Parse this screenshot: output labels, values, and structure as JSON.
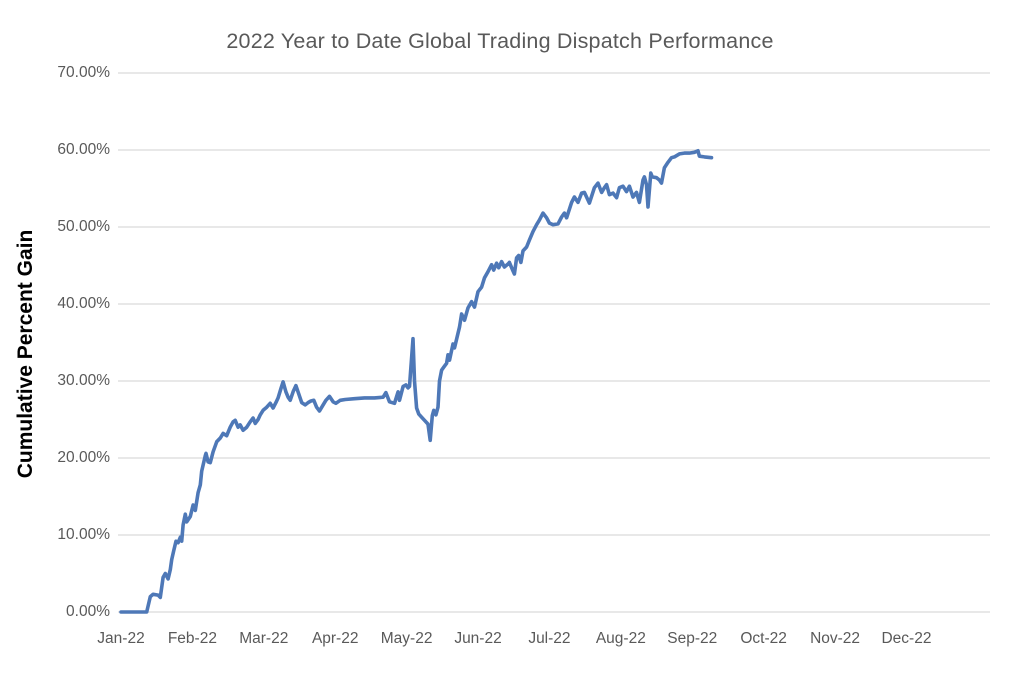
{
  "chart_data": {
    "type": "line",
    "title": "2022 Year to Date Global Trading Dispatch Performance",
    "xlabel": "",
    "ylabel": "Cumulative Percent Gain",
    "legend": "none",
    "grid": "horizontal",
    "ylim": [
      0,
      70
    ],
    "y_tick_step": 10,
    "y_tick_labels": [
      "0.00%",
      "10.00%",
      "20.00%",
      "30.00%",
      "40.00%",
      "50.00%",
      "60.00%",
      "70.00%"
    ],
    "x_tick_labels": [
      "Jan-22",
      "Feb-22",
      "Mar-22",
      "Apr-22",
      "May-22",
      "Jun-22",
      "Jul-22",
      "Aug-22",
      "Sep-22",
      "Oct-22",
      "Nov-22",
      "Dec-22"
    ],
    "x_axis_range_months": [
      0,
      12.17
    ],
    "series": [
      {
        "name": "Cumulative Percent Gain",
        "color": "#4E78B7",
        "points_month_pct": [
          [
            0.0,
            0
          ],
          [
            0.36,
            0
          ],
          [
            0.41,
            2.0
          ],
          [
            0.45,
            2.3
          ],
          [
            0.52,
            2.2
          ],
          [
            0.55,
            1.9
          ],
          [
            0.59,
            4.5
          ],
          [
            0.62,
            5.0
          ],
          [
            0.66,
            4.3
          ],
          [
            0.69,
            5.5
          ],
          [
            0.71,
            6.8
          ],
          [
            0.74,
            8.0
          ],
          [
            0.77,
            9.2
          ],
          [
            0.8,
            9.0
          ],
          [
            0.83,
            9.7
          ],
          [
            0.85,
            9.2
          ],
          [
            0.87,
            11.3
          ],
          [
            0.9,
            12.7
          ],
          [
            0.92,
            11.7
          ],
          [
            0.97,
            12.4
          ],
          [
            1.01,
            13.9
          ],
          [
            1.04,
            13.2
          ],
          [
            1.08,
            15.5
          ],
          [
            1.11,
            16.5
          ],
          [
            1.13,
            18.3
          ],
          [
            1.18,
            20.3
          ],
          [
            1.19,
            20.6
          ],
          [
            1.22,
            19.5
          ],
          [
            1.25,
            19.4
          ],
          [
            1.29,
            20.8
          ],
          [
            1.34,
            22.1
          ],
          [
            1.39,
            22.6
          ],
          [
            1.43,
            23.2
          ],
          [
            1.48,
            22.9
          ],
          [
            1.53,
            24.0
          ],
          [
            1.57,
            24.7
          ],
          [
            1.6,
            24.9
          ],
          [
            1.64,
            24.0
          ],
          [
            1.67,
            24.3
          ],
          [
            1.71,
            23.6
          ],
          [
            1.76,
            24.0
          ],
          [
            1.81,
            24.7
          ],
          [
            1.85,
            25.2
          ],
          [
            1.88,
            24.5
          ],
          [
            1.92,
            25.0
          ],
          [
            1.95,
            25.6
          ],
          [
            1.99,
            26.2
          ],
          [
            2.04,
            26.6
          ],
          [
            2.09,
            27.1
          ],
          [
            2.13,
            26.5
          ],
          [
            2.17,
            27.2
          ],
          [
            2.2,
            27.8
          ],
          [
            2.24,
            29.0
          ],
          [
            2.27,
            29.9
          ],
          [
            2.31,
            28.6
          ],
          [
            2.34,
            27.9
          ],
          [
            2.37,
            27.5
          ],
          [
            2.41,
            28.6
          ],
          [
            2.45,
            29.4
          ],
          [
            2.49,
            28.3
          ],
          [
            2.53,
            27.2
          ],
          [
            2.58,
            26.9
          ],
          [
            2.62,
            27.2
          ],
          [
            2.66,
            27.4
          ],
          [
            2.7,
            27.5
          ],
          [
            2.74,
            26.6
          ],
          [
            2.78,
            26.1
          ],
          [
            2.83,
            26.9
          ],
          [
            2.87,
            27.5
          ],
          [
            2.92,
            28.0
          ],
          [
            2.97,
            27.3
          ],
          [
            3.01,
            27.1
          ],
          [
            3.07,
            27.5
          ],
          [
            3.14,
            27.6
          ],
          [
            3.27,
            27.7
          ],
          [
            3.41,
            27.8
          ],
          [
            3.55,
            27.8
          ],
          [
            3.67,
            27.9
          ],
          [
            3.71,
            28.5
          ],
          [
            3.76,
            27.3
          ],
          [
            3.83,
            27.1
          ],
          [
            3.88,
            28.6
          ],
          [
            3.9,
            27.5
          ],
          [
            3.95,
            29.3
          ],
          [
            3.99,
            29.5
          ],
          [
            4.02,
            29.1
          ],
          [
            4.04,
            29.3
          ],
          [
            4.09,
            35.5
          ],
          [
            4.11,
            30.0
          ],
          [
            4.14,
            26.5
          ],
          [
            4.17,
            25.7
          ],
          [
            4.21,
            25.3
          ],
          [
            4.25,
            24.9
          ],
          [
            4.3,
            24.4
          ],
          [
            4.33,
            22.3
          ],
          [
            4.36,
            25.5
          ],
          [
            4.38,
            26.2
          ],
          [
            4.41,
            25.6
          ],
          [
            4.44,
            26.6
          ],
          [
            4.46,
            30.0
          ],
          [
            4.49,
            31.4
          ],
          [
            4.52,
            31.8
          ],
          [
            4.56,
            32.3
          ],
          [
            4.58,
            33.4
          ],
          [
            4.6,
            32.7
          ],
          [
            4.65,
            34.8
          ],
          [
            4.67,
            34.3
          ],
          [
            4.72,
            36.2
          ],
          [
            4.74,
            37.0
          ],
          [
            4.77,
            38.7
          ],
          [
            4.81,
            37.9
          ],
          [
            4.86,
            39.5
          ],
          [
            4.91,
            40.3
          ],
          [
            4.95,
            39.6
          ],
          [
            5.0,
            41.6
          ],
          [
            5.05,
            42.2
          ],
          [
            5.09,
            43.4
          ],
          [
            5.14,
            44.2
          ],
          [
            5.19,
            45.1
          ],
          [
            5.22,
            44.4
          ],
          [
            5.26,
            45.3
          ],
          [
            5.29,
            44.7
          ],
          [
            5.33,
            45.5
          ],
          [
            5.37,
            44.8
          ],
          [
            5.42,
            45.2
          ],
          [
            5.44,
            45.4
          ],
          [
            5.49,
            44.3
          ],
          [
            5.51,
            43.9
          ],
          [
            5.54,
            46.0
          ],
          [
            5.57,
            46.3
          ],
          [
            5.6,
            45.4
          ],
          [
            5.63,
            46.9
          ],
          [
            5.68,
            47.4
          ],
          [
            5.72,
            48.3
          ],
          [
            5.77,
            49.4
          ],
          [
            5.82,
            50.3
          ],
          [
            5.86,
            50.9
          ],
          [
            5.91,
            51.8
          ],
          [
            5.96,
            51.2
          ],
          [
            6.0,
            50.5
          ],
          [
            6.05,
            50.3
          ],
          [
            6.12,
            50.4
          ],
          [
            6.17,
            51.3
          ],
          [
            6.21,
            51.8
          ],
          [
            6.24,
            51.2
          ],
          [
            6.31,
            53.2
          ],
          [
            6.35,
            53.9
          ],
          [
            6.4,
            53.2
          ],
          [
            6.45,
            54.4
          ],
          [
            6.49,
            54.5
          ],
          [
            6.54,
            53.5
          ],
          [
            6.56,
            53.1
          ],
          [
            6.63,
            55.1
          ],
          [
            6.68,
            55.7
          ],
          [
            6.73,
            54.5
          ],
          [
            6.77,
            55.1
          ],
          [
            6.8,
            55.5
          ],
          [
            6.84,
            54.2
          ],
          [
            6.89,
            54.4
          ],
          [
            6.94,
            53.8
          ],
          [
            6.98,
            55.1
          ],
          [
            7.03,
            55.3
          ],
          [
            7.08,
            54.6
          ],
          [
            7.12,
            55.3
          ],
          [
            7.17,
            53.9
          ],
          [
            7.22,
            54.5
          ],
          [
            7.26,
            53.2
          ],
          [
            7.31,
            56.1
          ],
          [
            7.33,
            56.5
          ],
          [
            7.36,
            55.5
          ],
          [
            7.38,
            52.6
          ],
          [
            7.42,
            57.0
          ],
          [
            7.44,
            56.5
          ],
          [
            7.5,
            56.4
          ],
          [
            7.54,
            56.1
          ],
          [
            7.57,
            55.7
          ],
          [
            7.61,
            57.7
          ],
          [
            7.66,
            58.4
          ],
          [
            7.71,
            59.0
          ],
          [
            7.75,
            59.1
          ],
          [
            7.82,
            59.5
          ],
          [
            7.89,
            59.6
          ],
          [
            7.96,
            59.6
          ],
          [
            8.03,
            59.7
          ],
          [
            8.08,
            59.9
          ],
          [
            8.1,
            59.2
          ],
          [
            8.17,
            59.1
          ],
          [
            8.27,
            59.0
          ]
        ]
      }
    ],
    "colors": {
      "line": "#4E78B7",
      "gridline": "#D9D9D9",
      "title_text": "#595959",
      "tick_text": "#595959",
      "axis_title_text": "#000000",
      "background": "#FFFFFF"
    }
  }
}
